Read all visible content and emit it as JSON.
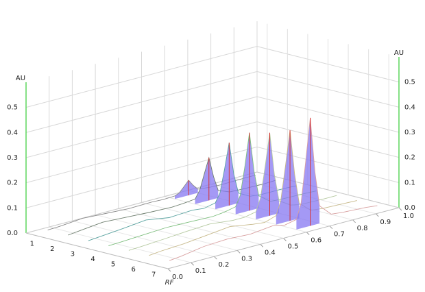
{
  "chart_data": {
    "type": "line3d",
    "x_label": "RF",
    "y_label": "AU",
    "x": [
      0.05,
      0.1,
      0.2,
      0.3,
      0.4,
      0.5,
      0.55,
      0.6,
      0.62,
      0.64,
      0.66,
      0.68,
      0.7,
      0.75,
      0.8,
      0.9,
      0.95
    ],
    "xlim": [
      0,
      1
    ],
    "xticks": [
      {
        "value": 0,
        "label": "0.0"
      },
      0.1,
      0.2,
      0.3,
      0.4,
      0.5,
      0.6,
      0.7,
      0.8,
      0.9,
      {
        "value": 1,
        "label": "1.0"
      }
    ],
    "ylim": [
      0,
      0.6
    ],
    "yticks": [
      {
        "value": 0,
        "label": "0.0"
      },
      0.1,
      0.2,
      0.3,
      0.4,
      0.5
    ],
    "fill_color": "#8577f2",
    "peak_color": "#d9302f",
    "axis_color": "#5cd65c",
    "grid": true,
    "series": [
      {
        "name": "1",
        "color": "#8a8a8a",
        "values": [
          0.01,
          0.012,
          0.02,
          0.015,
          0.01,
          0.012,
          0.01,
          0.012,
          0.02,
          0.04,
          0.06,
          0.035,
          0.015,
          0.01,
          0.008,
          0.01,
          0.01
        ]
      },
      {
        "name": "2",
        "color": "#6f7f6f",
        "values": [
          0.01,
          0.015,
          0.025,
          0.02,
          0.015,
          0.012,
          0.015,
          0.02,
          0.05,
          0.11,
          0.17,
          0.09,
          0.03,
          0.012,
          0.01,
          0.008,
          0.01
        ]
      },
      {
        "name": "3",
        "color": "#5aa3a0",
        "values": [
          0.008,
          0.012,
          0.02,
          0.03,
          0.015,
          0.02,
          0.015,
          0.025,
          0.06,
          0.15,
          0.25,
          0.12,
          0.04,
          0.015,
          0.01,
          0.01,
          0.008
        ]
      },
      {
        "name": "4",
        "color": "#7fbf7f",
        "values": [
          0.008,
          0.01,
          0.015,
          0.02,
          0.018,
          0.015,
          0.02,
          0.03,
          0.07,
          0.18,
          0.31,
          0.15,
          0.05,
          0.015,
          0.012,
          0.01,
          0.008
        ]
      },
      {
        "name": "5",
        "color": "#b5c9a0",
        "values": [
          0.01,
          0.012,
          0.018,
          0.025,
          0.03,
          0.02,
          0.02,
          0.03,
          0.08,
          0.2,
          0.33,
          0.16,
          0.05,
          0.02,
          0.012,
          0.01,
          0.01
        ]
      },
      {
        "name": "6",
        "color": "#c7b98a",
        "values": [
          0.01,
          0.015,
          0.02,
          0.03,
          0.04,
          0.025,
          0.02,
          0.035,
          0.09,
          0.22,
          0.36,
          0.18,
          0.06,
          0.02,
          0.015,
          0.012,
          0.01
        ]
      },
      {
        "name": "7",
        "color": "#d8a0a0",
        "values": [
          0.01,
          0.015,
          0.03,
          0.035,
          0.03,
          0.04,
          0.03,
          0.04,
          0.1,
          0.26,
          0.43,
          0.21,
          0.07,
          0.025,
          0.02,
          0.015,
          0.01
        ]
      }
    ]
  }
}
